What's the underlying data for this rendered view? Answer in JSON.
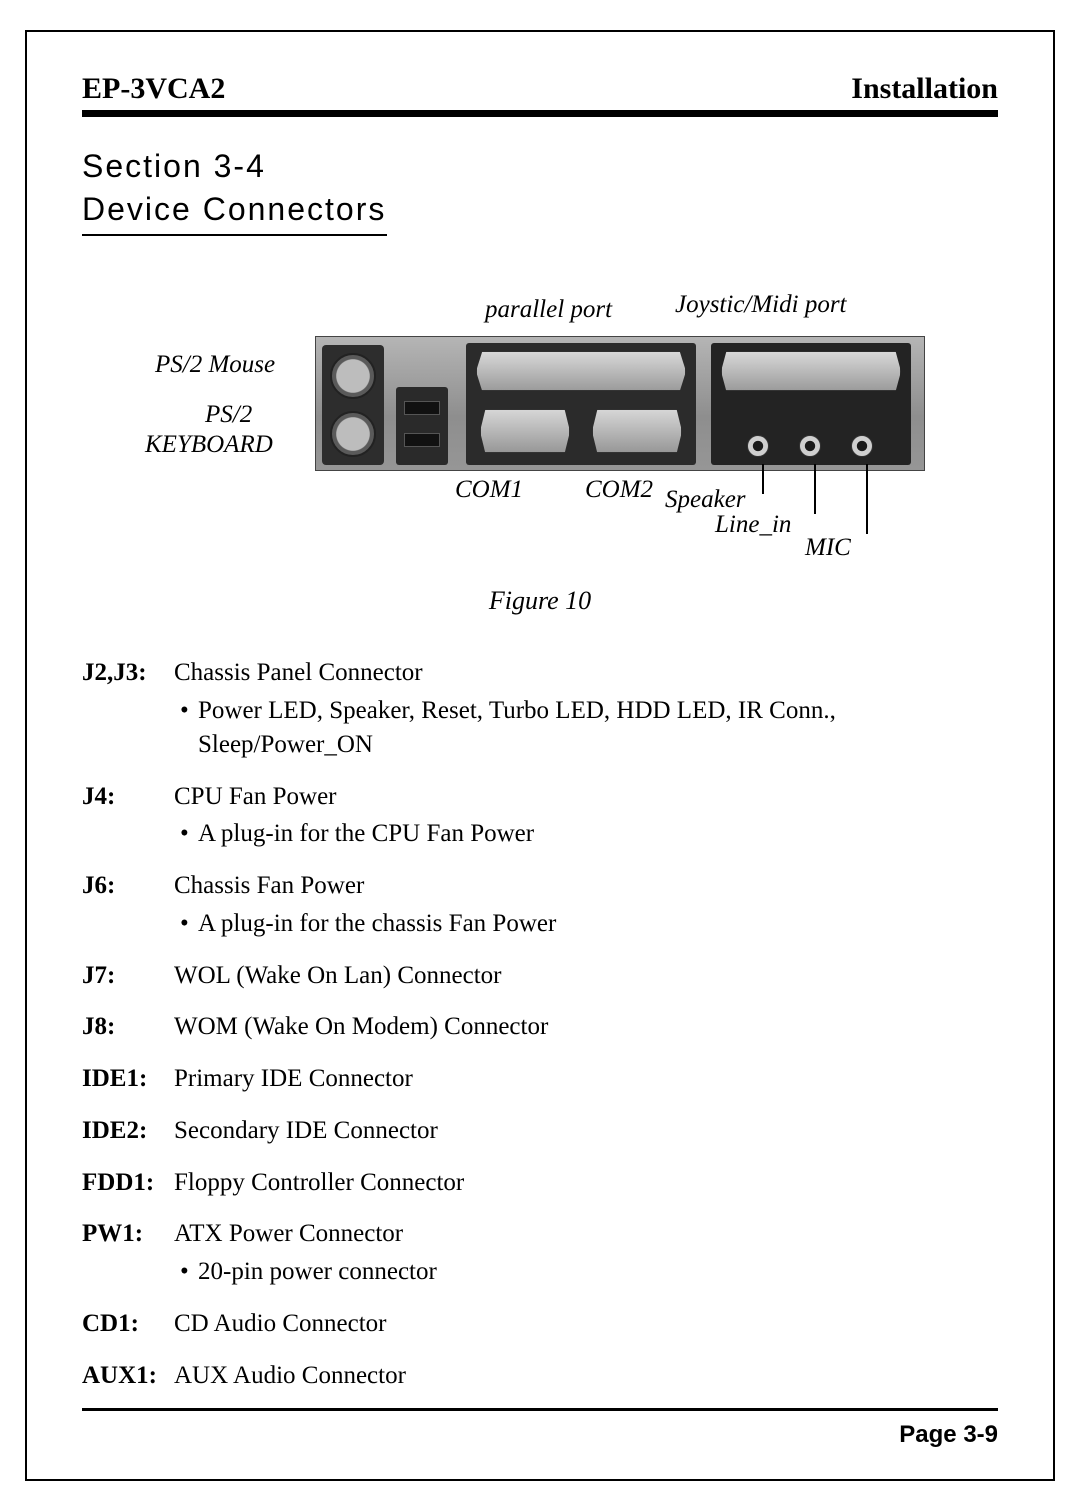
{
  "header": {
    "left": "EP-3VCA2",
    "right": "Installation"
  },
  "section": {
    "num": "Section 3-4",
    "title": "Device Connectors"
  },
  "diagram": {
    "labels": {
      "parallel": "parallel port",
      "joystick": "Joystic/Midi port",
      "ps2mouse": "PS/2 Mouse",
      "usb": "USB port",
      "ps2kbd": "PS/2",
      "ps2kbd2": "KEYBOARD",
      "com1": "COM1",
      "com2": "COM2",
      "speaker": "Speaker",
      "linein": "Line_in",
      "mic": "MIC"
    }
  },
  "figure_caption": "Figure 10",
  "definitions": [
    {
      "label": "J2,J3:",
      "body": "Chassis Panel Connector",
      "bullets": [
        "Power LED, Speaker, Reset, Turbo LED, HDD LED, IR Conn., Sleep/Power_ON"
      ]
    },
    {
      "label": "J4:",
      "body": "CPU Fan Power",
      "bullets": [
        "A plug-in for the CPU Fan Power"
      ]
    },
    {
      "label": "J6:",
      "body": "Chassis Fan Power",
      "bullets": [
        "A plug-in for the chassis Fan Power"
      ]
    },
    {
      "label": "J7:",
      "body": "WOL (Wake On Lan) Connector",
      "bullets": []
    },
    {
      "label": "J8:",
      "body": "WOM (Wake On Modem) Connector",
      "bullets": []
    },
    {
      "label": "IDE1:",
      "body": "Primary IDE Connector",
      "bullets": []
    },
    {
      "label": "IDE2:",
      "body": "Secondary IDE Connector",
      "bullets": []
    },
    {
      "label": "FDD1:",
      "body": "Floppy Controller Connector",
      "bullets": []
    },
    {
      "label": "PW1:",
      "body": "ATX Power Connector",
      "bullets": [
        "20-pin power connector"
      ]
    },
    {
      "label": "CD1:",
      "body": "CD Audio Connector",
      "bullets": []
    },
    {
      "label": "AUX1:",
      "body": "AUX Audio Connector",
      "bullets": []
    }
  ],
  "footer": {
    "page": "Page 3-9"
  },
  "colors": {
    "text": "#000000",
    "bg": "#ffffff",
    "photo_bg": "#8e8e8e",
    "metal": "#cfcfcf",
    "dark": "#2a2a2a"
  }
}
